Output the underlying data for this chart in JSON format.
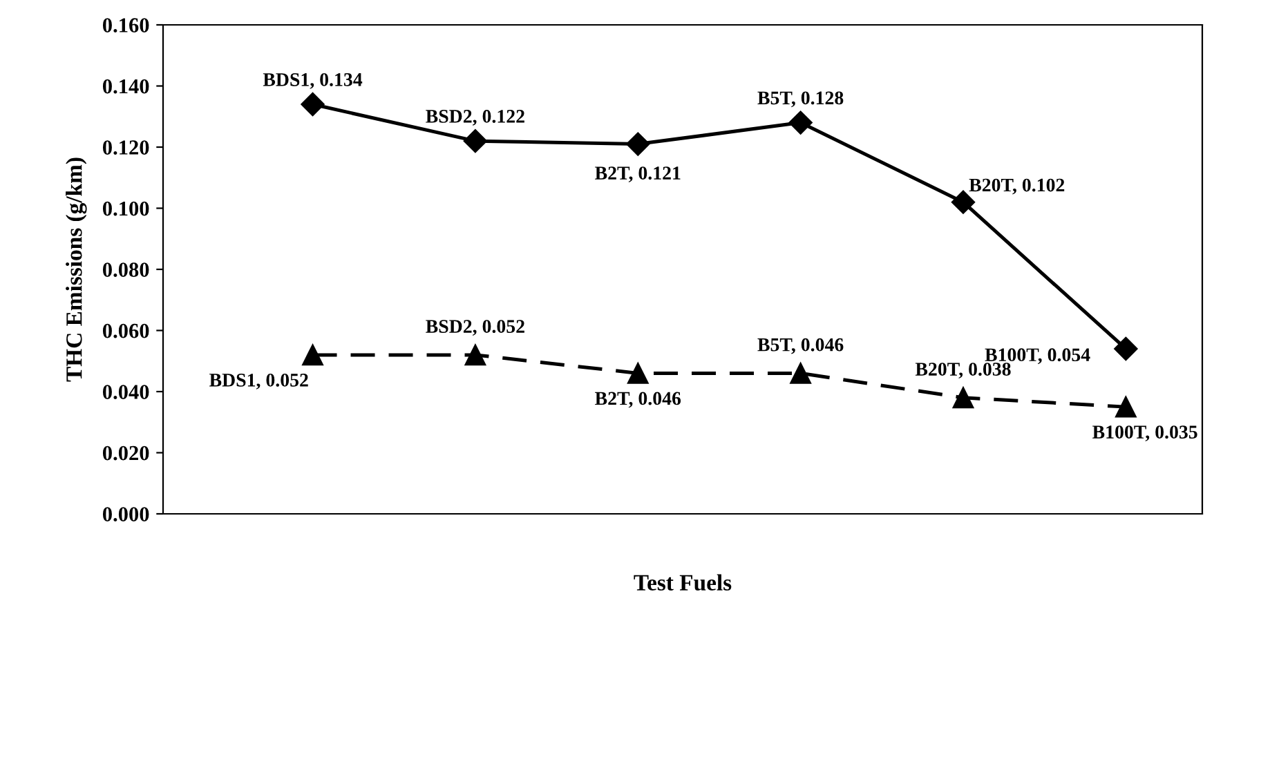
{
  "chart_data": {
    "type": "line",
    "xlabel": "Test Fuels",
    "ylabel": "THC Emissions (g/km)",
    "categories": [
      null,
      null,
      null,
      null,
      null,
      null
    ],
    "ylim": [
      0,
      0.16
    ],
    "yticks": [
      {
        "value": 0,
        "label": "0.000"
      },
      {
        "value": 0.02,
        "label": "0.020"
      },
      {
        "value": 0.04,
        "label": "0.040"
      },
      {
        "value": 0.06,
        "label": "0.060"
      },
      {
        "value": 0.08,
        "label": "0.080"
      },
      {
        "value": 0.1,
        "label": "0.100"
      },
      {
        "value": 0.12,
        "label": "0.120"
      },
      {
        "value": 0.14,
        "label": "0.140"
      },
      {
        "value": 0.16,
        "label": "0.160"
      }
    ],
    "grid": false,
    "series": [
      {
        "color": "#000000",
        "marker": "diamond",
        "line_style": "solid",
        "values": [
          0.134,
          0.122,
          0.121,
          0.128,
          0.102,
          0.054
        ],
        "value_labels": [
          "BDS1, 0.134",
          "BSD2, 0.122",
          "B2T, 0.121",
          "B5T, 0.128",
          "B20T, 0.102",
          "B100T, 0.054"
        ]
      },
      {
        "color": "#000000",
        "marker": "triangle",
        "line_style": "dashed",
        "values": [
          0.052,
          0.052,
          0.046,
          0.046,
          0.038,
          0.035
        ],
        "value_labels": [
          "BDS1, 0.052",
          "BSD2, 0.052",
          "B2T, 0.046",
          "B5T, 0.046",
          "B20T, 0.038",
          "B100T, 0.035"
        ]
      }
    ]
  }
}
